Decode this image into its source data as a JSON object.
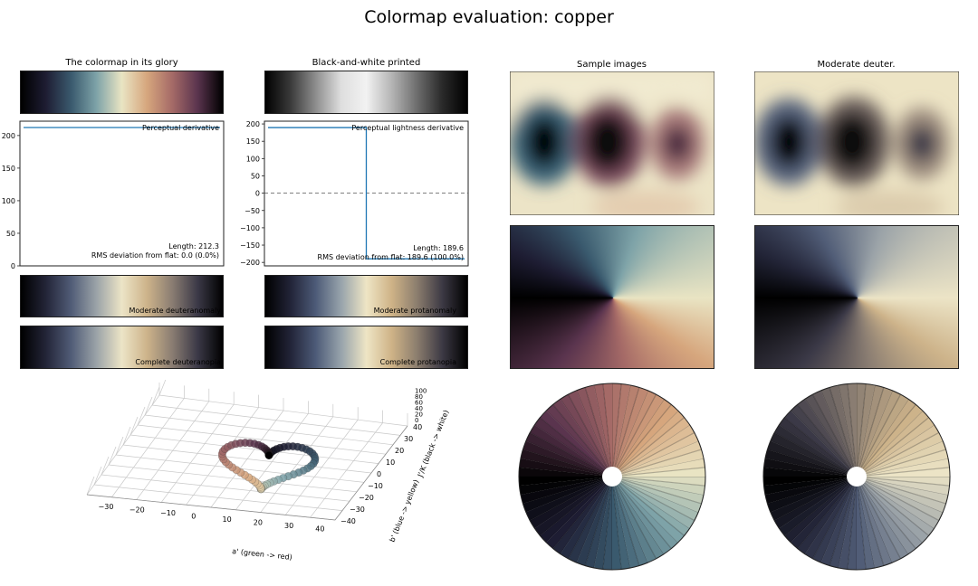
{
  "figure": {
    "title": "Colormap evaluation: copper",
    "panels": {
      "glory": "The colormap in its glory",
      "bw": "Black-and-white printed",
      "samples": "Sample images",
      "deuter": "Moderate deuter."
    }
  },
  "strips": {
    "mod_deut": "Moderate deuteranomaly",
    "mod_prot": "Moderate protanomaly",
    "comp_deut": "Complete deuteranopia",
    "comp_prot": "Complete protanopia"
  },
  "colors": {
    "colormap": [
      "#000000",
      "#1e1d33",
      "#3a5a6e",
      "#7ea3a8",
      "#e9e4c3",
      "#d6a67d",
      "#a56a67",
      "#5a344e",
      "#000000"
    ],
    "bw": [
      "#000000",
      "#3a3a3a",
      "#8e8e8e",
      "#dedede",
      "#f2f2f2",
      "#b5b5b5",
      "#6e6e6e",
      "#2a2a2a",
      "#000000"
    ],
    "deut": [
      "#000000",
      "#232538",
      "#515d77",
      "#9ba3a8",
      "#ece4c6",
      "#cdb38a",
      "#8a7d72",
      "#3b3947",
      "#000000"
    ],
    "prot": [
      "#000000",
      "#222438",
      "#4d5b78",
      "#97a3ab",
      "#eee5c5",
      "#cfb387",
      "#8c7e6e",
      "#3d3a45",
      "#000000"
    ],
    "line": "#1f77b4"
  },
  "chart_data": [
    {
      "type": "line",
      "name": "perceptual-derivative",
      "annotation": "Perceptual derivative",
      "length_text": "Length: 212.3",
      "rms_text": "RMS deviation from flat: 0.0 (0.0%)",
      "yticks": [
        0,
        50,
        100,
        150,
        200
      ],
      "ylim": [
        0,
        222
      ],
      "x": [
        0,
        1
      ],
      "y": [
        212.3,
        212.3
      ]
    },
    {
      "type": "line",
      "name": "perceptual-lightness-derivative",
      "annotation": "Perceptual lightness derivative",
      "length_text": "Length: 189.6",
      "rms_text": "RMS deviation from flat: 189.6 (100.0%)",
      "yticks": [
        -200,
        -150,
        -100,
        -50,
        0,
        50,
        100,
        150,
        200
      ],
      "ylim": [
        -210,
        208
      ],
      "x": [
        0,
        0.5,
        0.5,
        1
      ],
      "y": [
        189.6,
        189.6,
        -189.6,
        -189.6
      ],
      "reference_line": 0
    },
    {
      "type": "scatter",
      "name": "cam02-ucs-3d",
      "xlabel": "a' (green -> red)",
      "ylabel": "b' (blue -> yellow)",
      "zlabel": "J'/K (black -> white)",
      "xticks": [
        -30,
        -20,
        -10,
        0,
        10,
        20,
        30,
        40
      ],
      "yticks": [
        -40,
        -30,
        -20,
        -10,
        0,
        10,
        20,
        30,
        40
      ],
      "zticks": [
        0,
        20,
        40,
        60,
        80,
        100
      ]
    }
  ]
}
